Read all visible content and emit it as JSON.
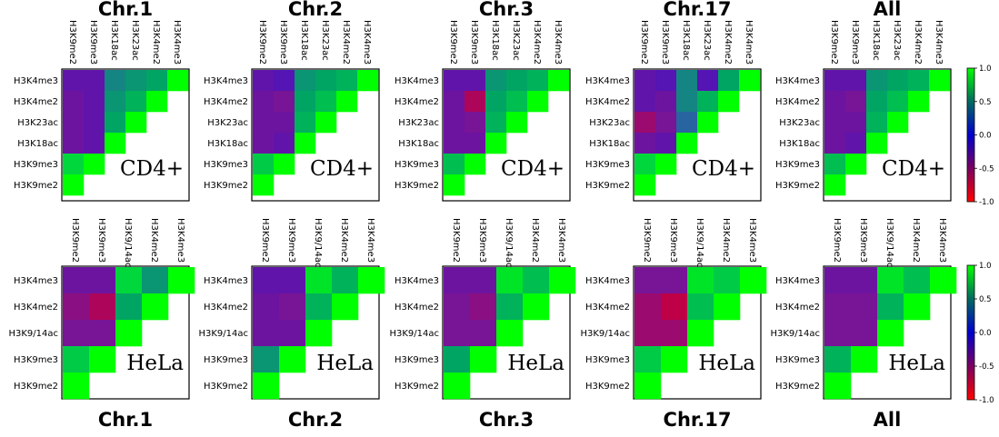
{
  "chart_data": {
    "type": "heatmap",
    "description_scale": "correlation colour scale, red (-1.0) to blue (0.0) to green (1.0)",
    "colorbar": {
      "ticks": [
        "1.0",
        "0.5",
        "0.0",
        "-0.5",
        "-1.0"
      ],
      "range": [
        -1.0,
        1.0
      ],
      "colors": {
        "low": "#ff0000",
        "mid": "#0000cc",
        "high": "#00ff00"
      }
    },
    "top_titles": [
      "Chr.1",
      "Chr.2",
      "Chr.3",
      "Chr.17",
      "All"
    ],
    "bottom_titles": [
      "Chr.1",
      "Chr.2",
      "Chr.3",
      "Chr.17",
      "All"
    ],
    "rows": [
      {
        "cell_line": "CD4+",
        "col_labels": [
          "H3K9me2",
          "H3K9me3",
          "H3K18ac",
          "H3K23ac",
          "H3K4me2",
          "H3K4me3"
        ],
        "row_labels": [
          "H3K4me3",
          "H3K4me2",
          "H3K23ac",
          "H3K18ac",
          "H3K9me3",
          "H3K9me2"
        ],
        "panels": [
          {
            "name": "Chr.1",
            "values": [
              [
                0.2,
                0.2,
                0.55,
                0.6,
                0.65,
                1.0
              ],
              [
                0.15,
                0.2,
                0.6,
                0.7,
                1.0
              ],
              [
                0.15,
                0.2,
                0.65,
                1.0
              ],
              [
                0.15,
                0.2,
                1.0
              ],
              [
                0.85,
                1.0
              ],
              [
                1.0
              ]
            ]
          },
          {
            "name": "Chr.2",
            "values": [
              [
                0.2,
                0.25,
                0.6,
                0.65,
                0.7,
                1.0
              ],
              [
                0.15,
                0.1,
                0.65,
                0.75,
                1.0
              ],
              [
                0.15,
                0.15,
                0.7,
                1.0
              ],
              [
                0.15,
                0.2,
                1.0
              ],
              [
                0.8,
                1.0
              ],
              [
                1.0
              ]
            ]
          },
          {
            "name": "Chr.3",
            "values": [
              [
                0.2,
                0.2,
                0.6,
                0.65,
                0.7,
                1.0
              ],
              [
                0.15,
                -0.05,
                0.65,
                0.75,
                1.0
              ],
              [
                0.15,
                0.1,
                0.7,
                1.0
              ],
              [
                0.15,
                0.15,
                1.0
              ],
              [
                0.75,
                1.0
              ],
              [
                1.0
              ]
            ]
          },
          {
            "name": "Chr.17",
            "values": [
              [
                0.2,
                0.25,
                0.55,
                0.25,
                0.65,
                1.0
              ],
              [
                0.2,
                0.15,
                0.55,
                0.7,
                1.0
              ],
              [
                0.0,
                0.1,
                0.45,
                1.0
              ],
              [
                0.15,
                0.2,
                1.0
              ],
              [
                0.85,
                1.0
              ],
              [
                1.0
              ]
            ]
          },
          {
            "name": "All",
            "values": [
              [
                0.2,
                0.2,
                0.6,
                0.65,
                0.7,
                1.0
              ],
              [
                0.15,
                0.1,
                0.65,
                0.75,
                1.0
              ],
              [
                0.15,
                0.15,
                0.7,
                1.0
              ],
              [
                0.15,
                0.2,
                1.0
              ],
              [
                0.75,
                1.0
              ],
              [
                1.0
              ]
            ]
          }
        ]
      },
      {
        "cell_line": "HeLa",
        "col_labels": [
          "H3K9me2",
          "H3K9me3",
          "H3K9/14ac",
          "H3K4me2",
          "H3K4me3"
        ],
        "row_labels": [
          "H3K4me3",
          "H3K4me2",
          "H3K9/14ac",
          "H3K9me3",
          "H3K9me2"
        ],
        "panels": [
          {
            "name": "Chr.1",
            "values": [
              [
                0.15,
                0.15,
                0.85,
                0.6,
                1.0
              ],
              [
                0.05,
                -0.05,
                0.65,
                1.0
              ],
              [
                0.1,
                0.1,
                1.0
              ],
              [
                0.8,
                1.0
              ],
              [
                1.0
              ]
            ]
          },
          {
            "name": "Chr.2",
            "values": [
              [
                0.2,
                0.2,
                0.9,
                0.7,
                1.0
              ],
              [
                0.15,
                0.1,
                0.7,
                1.0
              ],
              [
                0.15,
                0.15,
                1.0
              ],
              [
                0.6,
                1.0
              ],
              [
                1.0
              ]
            ]
          },
          {
            "name": "Chr.3",
            "values": [
              [
                0.15,
                0.15,
                0.9,
                0.75,
                1.0
              ],
              [
                0.1,
                0.05,
                0.7,
                1.0
              ],
              [
                0.1,
                0.1,
                1.0
              ],
              [
                0.65,
                1.0
              ],
              [
                1.0
              ]
            ]
          },
          {
            "name": "Chr.17",
            "values": [
              [
                0.1,
                0.1,
                0.9,
                0.8,
                1.0
              ],
              [
                0.0,
                -0.1,
                0.75,
                1.0
              ],
              [
                0.0,
                0.0,
                1.0
              ],
              [
                0.8,
                1.0
              ],
              [
                1.0
              ]
            ]
          },
          {
            "name": "All",
            "values": [
              [
                0.15,
                0.15,
                0.9,
                0.75,
                1.0
              ],
              [
                0.1,
                0.1,
                0.7,
                1.0
              ],
              [
                0.1,
                0.1,
                1.0
              ],
              [
                0.7,
                1.0
              ],
              [
                1.0
              ]
            ]
          }
        ]
      }
    ]
  }
}
